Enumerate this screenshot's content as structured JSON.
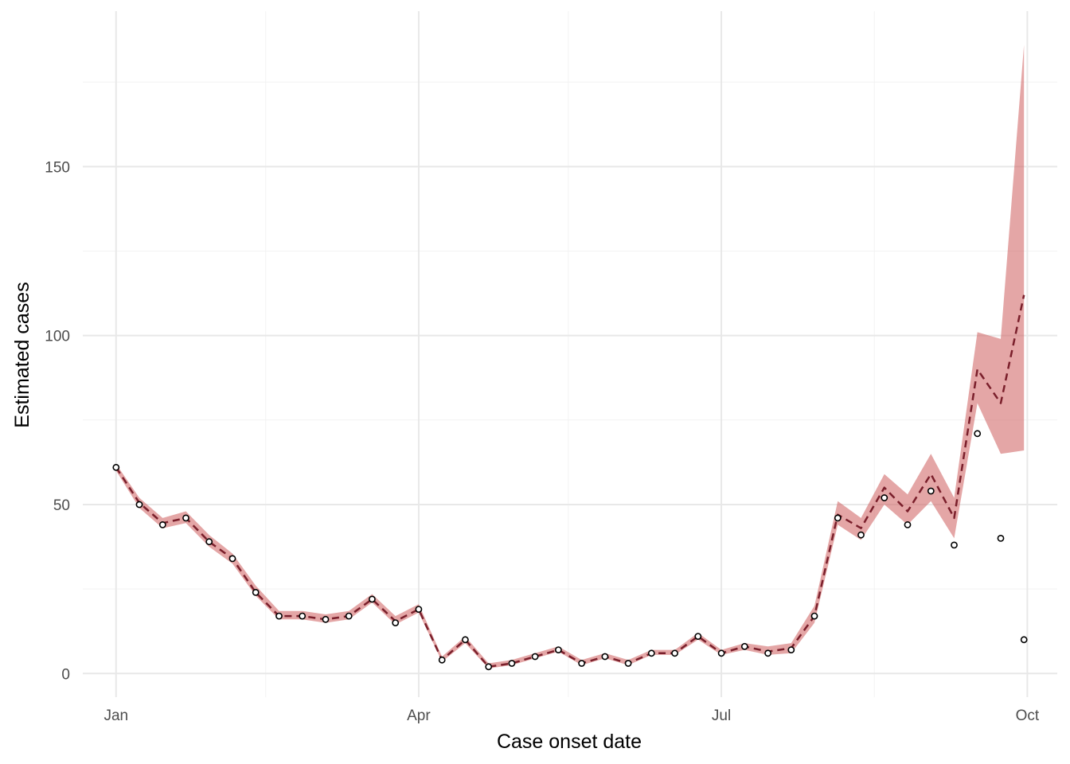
{
  "chart_data": {
    "type": "line",
    "xlabel": "Case onset date",
    "ylabel": "Estimated cases",
    "x_ticks": [
      {
        "date": "2020-01-01",
        "label": "Jan"
      },
      {
        "date": "2020-04-01",
        "label": "Apr"
      },
      {
        "date": "2020-07-01",
        "label": "Jul"
      },
      {
        "date": "2020-10-01",
        "label": "Oct"
      }
    ],
    "x_minor_ticks": [
      "2020-02-15",
      "2020-05-16",
      "2020-08-16"
    ],
    "y_ticks": [
      {
        "value": 0,
        "label": "0"
      },
      {
        "value": 50,
        "label": "50"
      },
      {
        "value": 100,
        "label": "100"
      },
      {
        "value": 150,
        "label": "150"
      }
    ],
    "y_minor_ticks": [
      25,
      75,
      125,
      175
    ],
    "xlim": [
      "2019-12-22",
      "2020-10-10"
    ],
    "ylim": [
      -7,
      196
    ],
    "grid": true,
    "colors": {
      "ribbon": "#cd5c5c",
      "estimate_line": "#7a1f2b",
      "points": "#000000",
      "grid_major": "#e8e8e8",
      "grid_minor": "#f2f2f2"
    },
    "series": [
      {
        "type": "points",
        "x": [
          "2020-01-01",
          "2020-01-08",
          "2020-01-15",
          "2020-01-22",
          "2020-01-29",
          "2020-02-05",
          "2020-02-12",
          "2020-02-19",
          "2020-02-26",
          "2020-03-04",
          "2020-03-11",
          "2020-03-18",
          "2020-03-25",
          "2020-04-01",
          "2020-04-08",
          "2020-04-15",
          "2020-04-22",
          "2020-04-29",
          "2020-05-06",
          "2020-05-13",
          "2020-05-20",
          "2020-05-27",
          "2020-06-03",
          "2020-06-10",
          "2020-06-17",
          "2020-06-24",
          "2020-07-01",
          "2020-07-08",
          "2020-07-15",
          "2020-07-22",
          "2020-07-29",
          "2020-08-05",
          "2020-08-12",
          "2020-08-19",
          "2020-08-26",
          "2020-09-02",
          "2020-09-09",
          "2020-09-16",
          "2020-09-23",
          "2020-09-30"
        ],
        "values": [
          61,
          50,
          44,
          46,
          39,
          34,
          24,
          17,
          17,
          16,
          17,
          22,
          15,
          19,
          4,
          10,
          2,
          3,
          5,
          7,
          3,
          5,
          3,
          6,
          6,
          11,
          6,
          8,
          6,
          7,
          17,
          46,
          41,
          52,
          44,
          54,
          38,
          71,
          40,
          10
        ]
      },
      {
        "type": "line-dashed",
        "x": [
          "2020-01-01",
          "2020-01-08",
          "2020-01-15",
          "2020-01-22",
          "2020-01-29",
          "2020-02-05",
          "2020-02-12",
          "2020-02-19",
          "2020-02-26",
          "2020-03-04",
          "2020-03-11",
          "2020-03-18",
          "2020-03-25",
          "2020-04-01",
          "2020-04-08",
          "2020-04-15",
          "2020-04-22",
          "2020-04-29",
          "2020-05-06",
          "2020-05-13",
          "2020-05-20",
          "2020-05-27",
          "2020-06-03",
          "2020-06-10",
          "2020-06-17",
          "2020-06-24",
          "2020-07-01",
          "2020-07-08",
          "2020-07-15",
          "2020-07-22",
          "2020-07-29",
          "2020-08-05",
          "2020-08-12",
          "2020-08-19",
          "2020-08-26",
          "2020-09-02",
          "2020-09-09",
          "2020-09-16",
          "2020-09-23",
          "2020-09-30"
        ],
        "values": [
          61,
          50.5,
          44.5,
          46,
          39,
          34,
          24,
          17,
          17,
          16,
          17,
          22,
          15.5,
          19,
          4,
          10,
          2,
          3,
          5,
          7,
          3,
          5,
          3,
          6,
          6,
          11,
          6,
          8,
          6.5,
          7.5,
          17,
          47,
          43,
          55,
          48,
          59,
          46,
          90,
          80,
          112
        ]
      },
      {
        "type": "ribbon",
        "x": [
          "2020-01-01",
          "2020-01-08",
          "2020-01-15",
          "2020-01-22",
          "2020-01-29",
          "2020-02-05",
          "2020-02-12",
          "2020-02-19",
          "2020-02-26",
          "2020-03-04",
          "2020-03-11",
          "2020-03-18",
          "2020-03-25",
          "2020-04-01",
          "2020-04-08",
          "2020-04-15",
          "2020-04-22",
          "2020-04-29",
          "2020-05-06",
          "2020-05-13",
          "2020-05-20",
          "2020-05-27",
          "2020-06-03",
          "2020-06-10",
          "2020-06-17",
          "2020-06-24",
          "2020-07-01",
          "2020-07-08",
          "2020-07-15",
          "2020-07-22",
          "2020-07-29",
          "2020-08-05",
          "2020-08-12",
          "2020-08-19",
          "2020-08-26",
          "2020-09-02",
          "2020-09-09",
          "2020-09-16",
          "2020-09-23",
          "2020-09-30"
        ],
        "lower": [
          60,
          49,
          43,
          44.5,
          37.5,
          32.5,
          23,
          16,
          16,
          15,
          16,
          21,
          14.5,
          18,
          3.5,
          9,
          1.5,
          2.5,
          4.5,
          6.5,
          2.5,
          4.5,
          2.5,
          5.5,
          5.5,
          10,
          5.5,
          7,
          5.5,
          6,
          15,
          44,
          39.5,
          50,
          44,
          51,
          40,
          80,
          65,
          66
        ],
        "upper": [
          62,
          52,
          46,
          48,
          41,
          35.5,
          26,
          18.5,
          18.5,
          17.5,
          18.5,
          23.5,
          17,
          20.5,
          5,
          11,
          3,
          4,
          6,
          8,
          4,
          6,
          4,
          7,
          7,
          12,
          7,
          9,
          8,
          9,
          20,
          51,
          46,
          59,
          53,
          65,
          52,
          101,
          99,
          186
        ]
      }
    ]
  }
}
